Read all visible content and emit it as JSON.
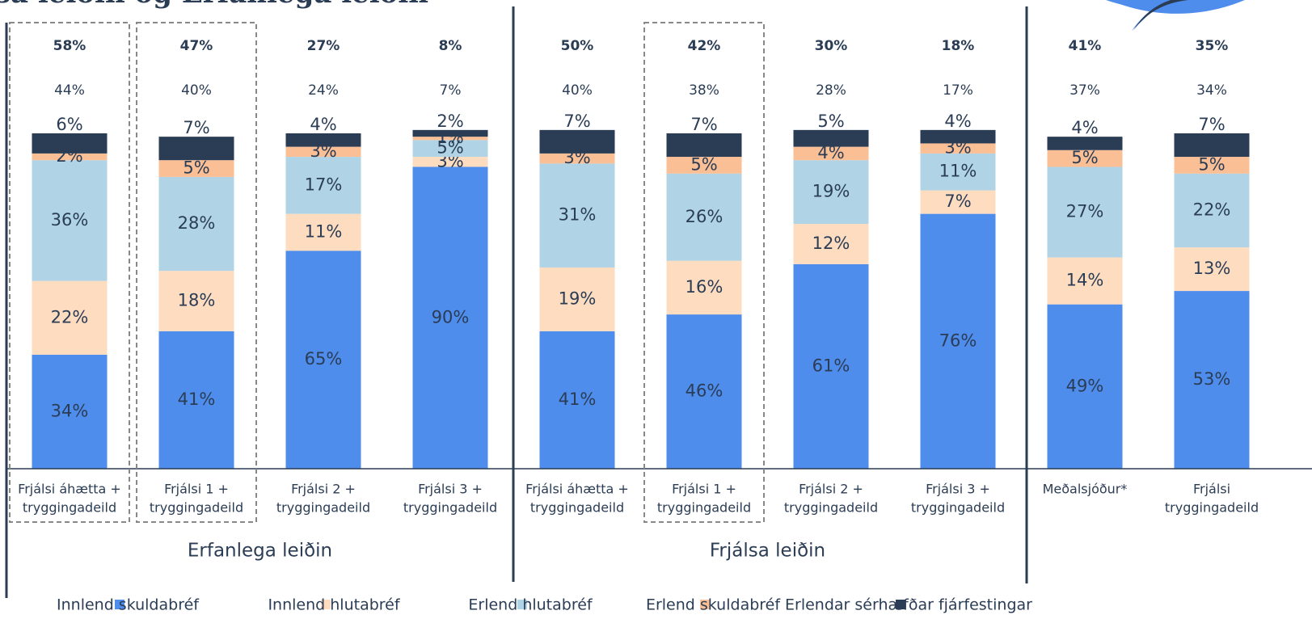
{
  "chart_data": {
    "type": "stacked_bar",
    "title": "Frjálsa leiðin og Erfanlega leiðin",
    "categories": [
      [
        "Frjálsi áhætta +",
        "tryggingadeild"
      ],
      [
        "Frjálsi 1 +",
        "tryggingadeild"
      ],
      [
        "Frjálsi 2 +",
        "tryggingadeild"
      ],
      [
        "Frjálsi 3 +",
        "tryggingadeild"
      ],
      [
        "Frjálsi áhætta +",
        "tryggingadeild"
      ],
      [
        "Frjálsi 1 +",
        "tryggingadeild"
      ],
      [
        "Frjálsi 2 +",
        "tryggingadeild"
      ],
      [
        "Frjálsi 3 +",
        "tryggingadeild"
      ],
      [
        "Meðalsjóður*"
      ],
      [
        "Frjálsi",
        "tryggingadeild"
      ]
    ],
    "groups": [
      {
        "label": "Erfanlega leiðin",
        "from": 0,
        "to": 3
      },
      {
        "label": "Frjálsa leiðin",
        "from": 4,
        "to": 7
      },
      {
        "from": 8,
        "to": 9
      }
    ],
    "highlighted": [
      0,
      1,
      5
    ],
    "top_bold": [
      58,
      47,
      27,
      8,
      50,
      42,
      30,
      18,
      41,
      35
    ],
    "top_bold_labels": [
      "58%",
      "47%",
      "27%",
      "8%",
      "50%",
      "42%",
      "30%",
      "18%",
      "41%",
      "35%"
    ],
    "top": [
      44,
      40,
      24,
      7,
      40,
      38,
      28,
      17,
      37,
      34
    ],
    "top_labels": [
      "44%",
      "40%",
      "24%",
      "7%",
      "40%",
      "38%",
      "28%",
      "17%",
      "37%",
      "34%"
    ],
    "legend": "bottom",
    "series": [
      {
        "name": "Innlend skuldabréf",
        "color": "#4f8ded",
        "values": [
          34,
          41,
          65,
          90,
          41,
          46,
          61,
          76,
          49,
          53
        ],
        "value_labels": [
          "34%",
          "41%",
          "65%",
          "90%",
          "41%",
          "46%",
          "61%",
          "76%",
          "49%",
          "53%"
        ]
      },
      {
        "name": "Innlend hlutabréf",
        "color": "#fddcc0",
        "values": [
          22,
          18,
          11,
          3,
          19,
          16,
          12,
          7,
          14,
          13
        ],
        "value_labels": [
          "22%",
          "18%",
          "11%",
          "3%",
          "19%",
          "16%",
          "12%",
          "7%",
          "14%",
          "13%"
        ]
      },
      {
        "name": "Erlend hlutabréf",
        "color": "#b0d4e6",
        "values": [
          36,
          28,
          17,
          5,
          31,
          26,
          19,
          11,
          27,
          22
        ],
        "value_labels": [
          "36%",
          "28%",
          "17%",
          "5%",
          "31%",
          "26%",
          "19%",
          "11%",
          "27%",
          "22%"
        ]
      },
      {
        "name": "Erlend skuldabréf",
        "color": "#fbbf96",
        "values": [
          2,
          5,
          3,
          1,
          3,
          5,
          4,
          3,
          5,
          5
        ],
        "value_labels": [
          "2%",
          "5%",
          "3%",
          "1%",
          "3%",
          "5%",
          "4%",
          "3%",
          "5%",
          "5%"
        ]
      },
      {
        "name": "Erlendar sérhæfðar fjárfestingar",
        "color": "#2b3d55",
        "values": [
          6,
          7,
          4,
          2,
          7,
          7,
          5,
          4,
          4,
          7
        ],
        "value_labels": [
          "6%",
          "7%",
          "4%",
          "2%",
          "7%",
          "7%",
          "5%",
          "4%",
          "4%",
          "7%"
        ]
      }
    ]
  }
}
